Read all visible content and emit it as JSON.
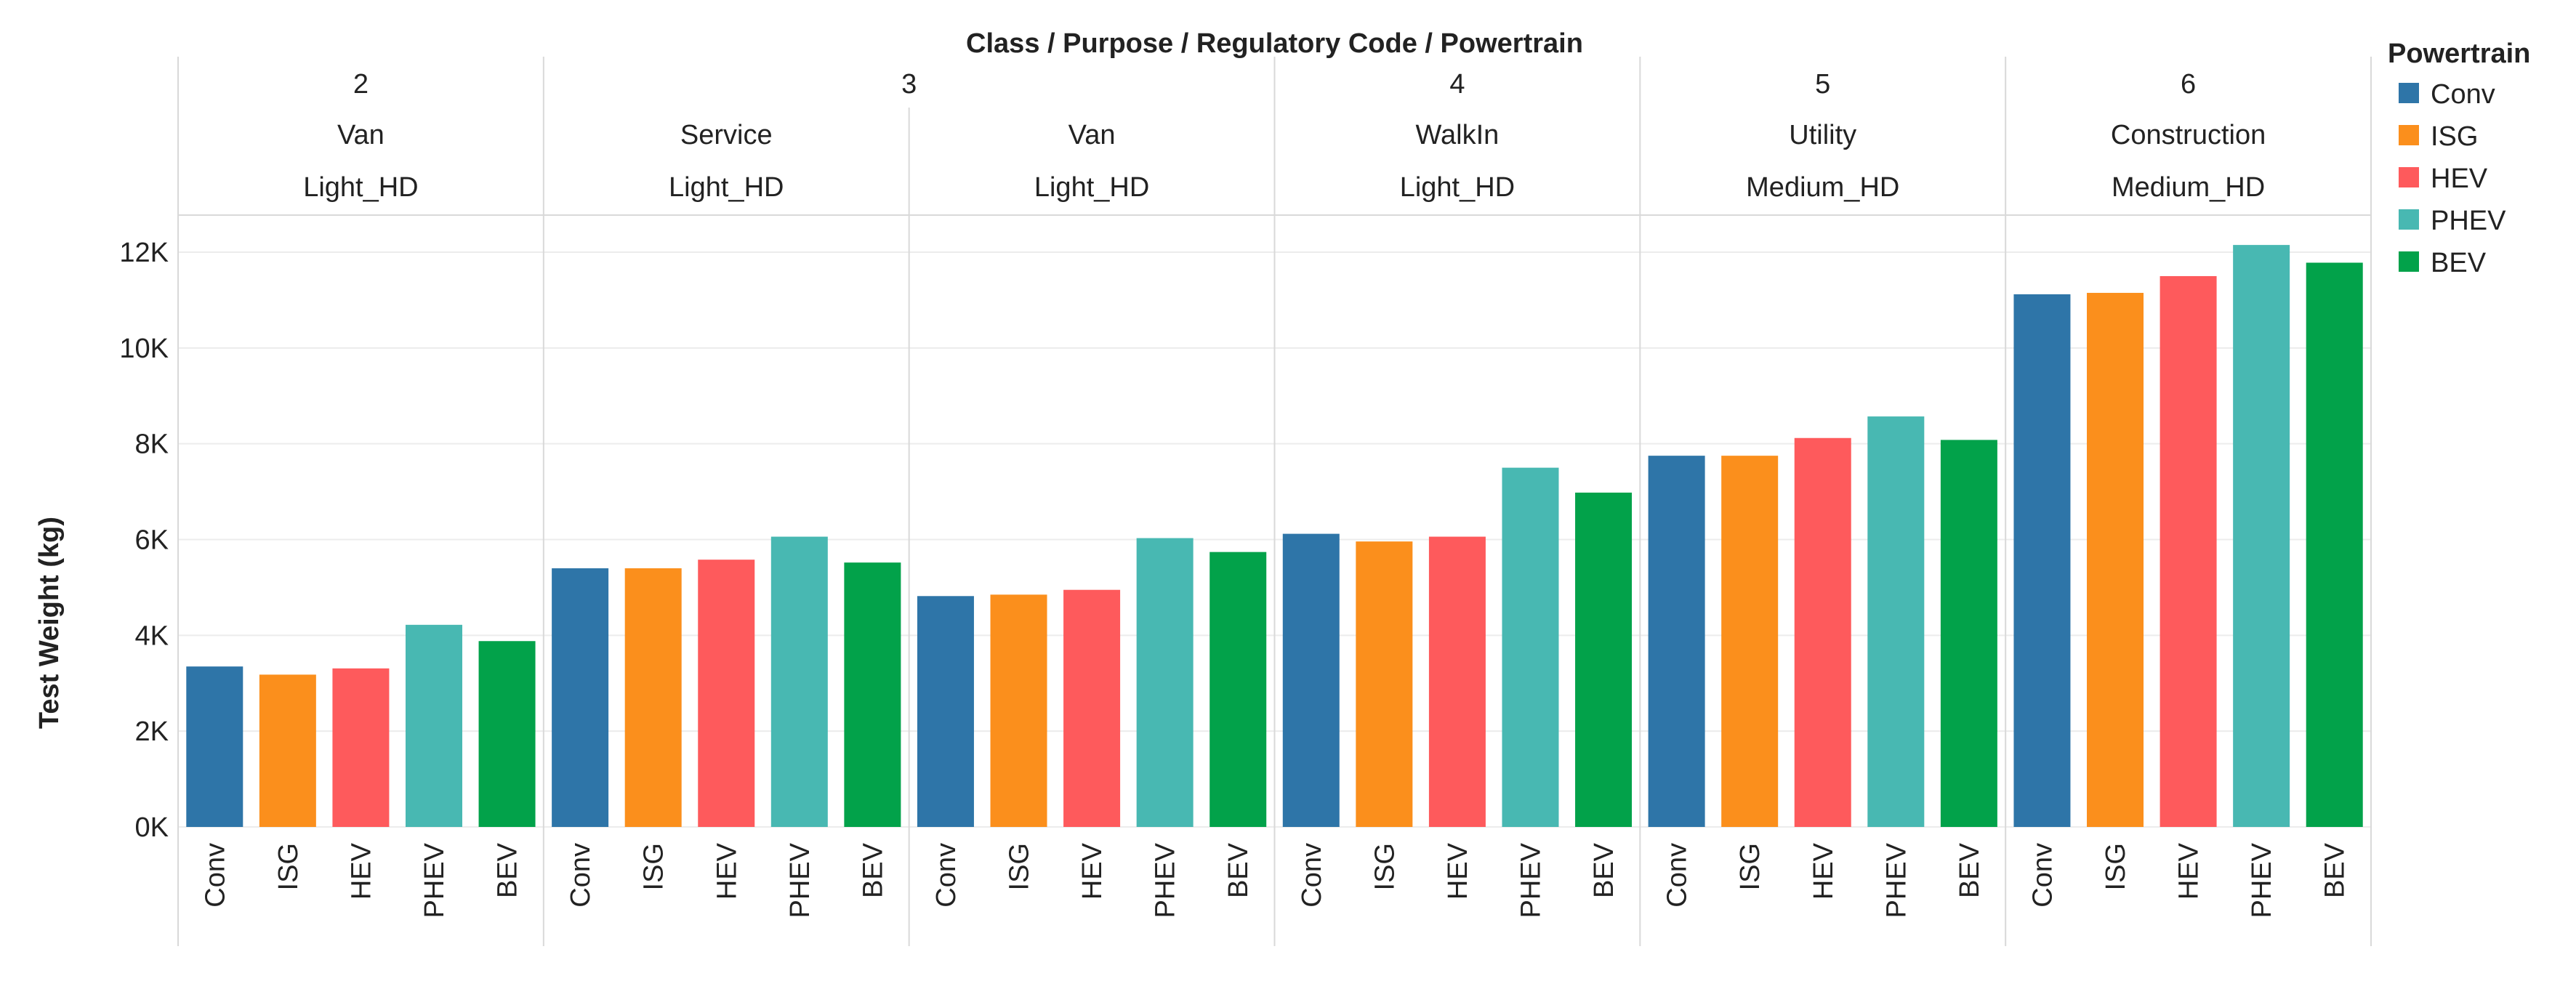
{
  "chart_data": {
    "type": "bar",
    "title": "Class / Purpose / Regulatory Code / Powertrain",
    "ylabel": "Test Weight (kg)",
    "xlabel": "",
    "ylim": [
      0,
      12000
    ],
    "ytick_values": [
      0,
      2000,
      4000,
      6000,
      8000,
      10000,
      12000
    ],
    "ytick_labels": [
      "0K",
      "2K",
      "4K",
      "6K",
      "8K",
      "10K",
      "12K"
    ],
    "grid": true,
    "legend": {
      "title": "Powertrain",
      "position": "right",
      "entries": [
        {
          "name": "Conv",
          "color": "#2e75a8"
        },
        {
          "name": "ISG",
          "color": "#fb8f1c"
        },
        {
          "name": "HEV",
          "color": "#fe5a5c"
        },
        {
          "name": "PHEV",
          "color": "#48b8b2"
        },
        {
          "name": "BEV",
          "color": "#02a24a"
        }
      ]
    },
    "classes": [
      {
        "label": "2",
        "span": 1
      },
      {
        "label": "3",
        "span": 2
      },
      {
        "label": "4",
        "span": 1
      },
      {
        "label": "5",
        "span": 1
      },
      {
        "label": "6",
        "span": 1
      }
    ],
    "groups": [
      {
        "class": "2",
        "purpose": "Van",
        "code": "Light_HD",
        "categories": [
          "Conv",
          "ISG",
          "HEV",
          "PHEV",
          "BEV"
        ],
        "values": [
          3350,
          3180,
          3310,
          4220,
          3880
        ]
      },
      {
        "class": "3",
        "purpose": "Service",
        "code": "Light_HD",
        "categories": [
          "Conv",
          "ISG",
          "HEV",
          "PHEV",
          "BEV"
        ],
        "values": [
          5400,
          5400,
          5580,
          6060,
          5520
        ]
      },
      {
        "class": "3",
        "purpose": "Van",
        "code": "Light_HD",
        "categories": [
          "Conv",
          "ISG",
          "HEV",
          "PHEV",
          "BEV"
        ],
        "values": [
          4820,
          4850,
          4950,
          6030,
          5740
        ]
      },
      {
        "class": "4",
        "purpose": "WalkIn",
        "code": "Light_HD",
        "categories": [
          "Conv",
          "ISG",
          "HEV",
          "PHEV",
          "BEV"
        ],
        "values": [
          6120,
          5960,
          6060,
          7500,
          6980
        ]
      },
      {
        "class": "5",
        "purpose": "Utility",
        "code": "Medium_HD",
        "categories": [
          "Conv",
          "ISG",
          "HEV",
          "PHEV",
          "BEV"
        ],
        "values": [
          7750,
          7750,
          8120,
          8570,
          8080
        ]
      },
      {
        "class": "6",
        "purpose": "Construction",
        "code": "Medium_HD",
        "categories": [
          "Conv",
          "ISG",
          "HEV",
          "PHEV",
          "BEV"
        ],
        "values": [
          11120,
          11150,
          11500,
          12150,
          11780
        ]
      }
    ]
  }
}
